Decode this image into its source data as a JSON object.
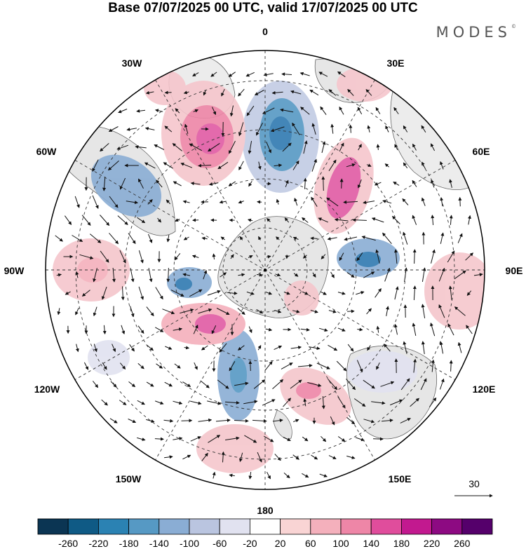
{
  "title": "Base 07/07/2025 00 UTC, valid 17/07/2025 00 UTC",
  "brand": "MODES",
  "brand_mark": "©",
  "longitude_labels": {
    "n": "0",
    "ne": "30E",
    "e1": "60E",
    "e": "90E",
    "se1": "120E",
    "se": "150E",
    "s": "180",
    "sw": "150W",
    "sw1": "120W",
    "w": "90W",
    "nw1": "60W",
    "nw": "30W"
  },
  "vector_reference": "30",
  "colorbar": {
    "labels": [
      "-260",
      "-220",
      "-180",
      "-140",
      "-100",
      "-60",
      "-20",
      "20",
      "60",
      "100",
      "140",
      "180",
      "220",
      "260"
    ],
    "colors": [
      "#0b3553",
      "#0f5a85",
      "#2b82b3",
      "#5699c4",
      "#8aadd4",
      "#bac5e0",
      "#e1e2f0",
      "#ffffff",
      "#f9d4d4",
      "#f4b0bc",
      "#ee86a7",
      "#e04d9c",
      "#c2198f",
      "#8d0a82",
      "#55006b"
    ]
  },
  "anomaly_colors": {
    "negative_strong": "#2f79b1",
    "negative_weak": "#c2cbe4",
    "positive_weak": "#f5c6cc",
    "positive_strong": "#e05aa4"
  }
}
